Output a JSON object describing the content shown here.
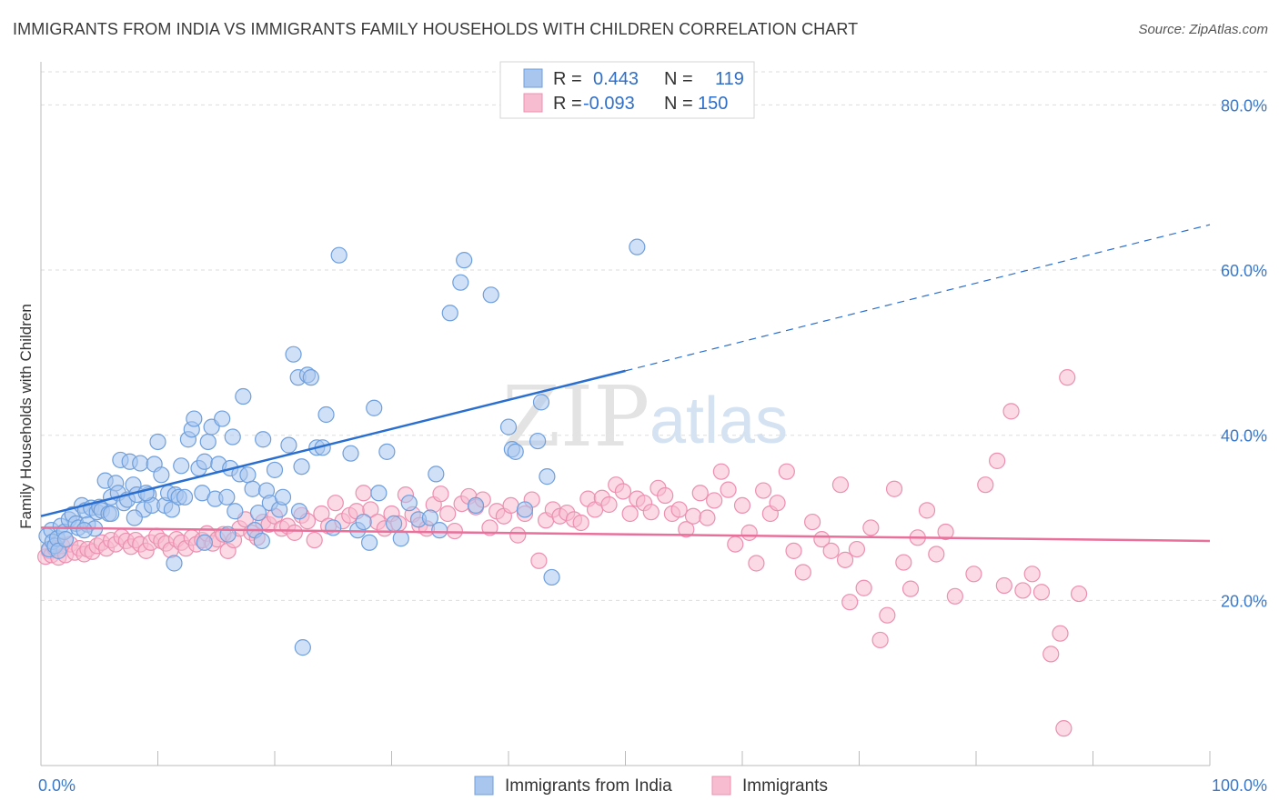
{
  "header": {
    "title": "IMMIGRANTS FROM INDIA VS IMMIGRANTS FAMILY HOUSEHOLDS WITH CHILDREN CORRELATION CHART",
    "source": "Source: ZipAtlas.com"
  },
  "watermark": {
    "zip": "ZIP",
    "atlas": "atlas"
  },
  "colors": {
    "blue_fill": "#a9c6ee",
    "blue_stroke": "#6f9fdc",
    "blue_line": "#2a6fd0",
    "pink_fill": "#f7bcd0",
    "pink_stroke": "#ec8fb0",
    "pink_line": "#e8709a",
    "tick_text": "#3a78c9",
    "grid": "#dddddd"
  },
  "legend": {
    "r_label": "R =",
    "n_label": "N =",
    "rows": [
      {
        "r": "0.443",
        "n": "119"
      },
      {
        "r": "-0.093",
        "n": "150"
      }
    ]
  },
  "chart_data": {
    "type": "scatter",
    "xlabel": "",
    "ylabel": "Family Households with Children",
    "xlim": [
      0,
      100
    ],
    "ylim": [
      0,
      85
    ],
    "x_tick_labels": [
      "0.0%",
      "100.0%"
    ],
    "y_ticks": [
      20,
      40,
      60,
      80
    ],
    "y_tick_labels": [
      "20.0%",
      "40.0%",
      "60.0%",
      "80.0%"
    ],
    "grid": "horizontal dashed",
    "legend_position": "top-center",
    "series": [
      {
        "name": "Immigrants from India",
        "color": "blue",
        "trend": {
          "x": [
            0,
            50
          ],
          "y": [
            30.2,
            47.8
          ],
          "dashed_extension_to": [
            100,
            65.5
          ]
        },
        "points": [
          [
            0.5,
            27.8
          ],
          [
            0.7,
            26.2
          ],
          [
            0.9,
            28.5
          ],
          [
            1.0,
            27.1
          ],
          [
            1.2,
            26.6
          ],
          [
            1.4,
            27.5
          ],
          [
            1.5,
            26.0
          ],
          [
            1.7,
            29.0
          ],
          [
            2.0,
            28.3
          ],
          [
            2.1,
            27.4
          ],
          [
            2.4,
            29.8
          ],
          [
            2.7,
            30.4
          ],
          [
            3.0,
            29.3
          ],
          [
            3.2,
            28.8
          ],
          [
            3.5,
            31.5
          ],
          [
            3.8,
            30.9
          ],
          [
            4.0,
            29.2
          ],
          [
            4.3,
            31.2
          ],
          [
            4.6,
            28.7
          ],
          [
            4.8,
            30.7
          ],
          [
            5.0,
            31.3
          ],
          [
            5.2,
            30.9
          ],
          [
            5.5,
            34.5
          ],
          [
            5.8,
            30.5
          ],
          [
            6.0,
            32.5
          ],
          [
            6.4,
            34.2
          ],
          [
            6.6,
            33.0
          ],
          [
            6.8,
            37.0
          ],
          [
            7.1,
            31.8
          ],
          [
            7.4,
            32.2
          ],
          [
            7.6,
            36.8
          ],
          [
            7.9,
            34.0
          ],
          [
            8.2,
            32.8
          ],
          [
            8.5,
            36.6
          ],
          [
            8.8,
            31.0
          ],
          [
            9.2,
            32.8
          ],
          [
            9.5,
            31.5
          ],
          [
            9.7,
            36.5
          ],
          [
            10.0,
            39.2
          ],
          [
            10.3,
            35.2
          ],
          [
            10.6,
            31.5
          ],
          [
            10.9,
            33.0
          ],
          [
            11.2,
            31.0
          ],
          [
            11.5,
            32.8
          ],
          [
            11.8,
            32.5
          ],
          [
            12.0,
            36.3
          ],
          [
            12.3,
            32.5
          ],
          [
            12.6,
            39.5
          ],
          [
            12.9,
            40.7
          ],
          [
            13.1,
            42.0
          ],
          [
            13.5,
            36.0
          ],
          [
            13.8,
            33.0
          ],
          [
            14.0,
            36.8
          ],
          [
            14.3,
            39.2
          ],
          [
            14.6,
            41.0
          ],
          [
            14.9,
            32.3
          ],
          [
            15.2,
            36.5
          ],
          [
            15.5,
            42.0
          ],
          [
            15.9,
            32.5
          ],
          [
            16.2,
            36.0
          ],
          [
            16.4,
            39.8
          ],
          [
            16.6,
            30.8
          ],
          [
            17.0,
            35.3
          ],
          [
            17.3,
            44.7
          ],
          [
            17.7,
            35.2
          ],
          [
            18.1,
            33.5
          ],
          [
            18.3,
            28.5
          ],
          [
            18.6,
            30.6
          ],
          [
            19.0,
            39.5
          ],
          [
            19.3,
            33.3
          ],
          [
            19.6,
            31.8
          ],
          [
            20.0,
            35.8
          ],
          [
            20.4,
            31.0
          ],
          [
            20.7,
            32.5
          ],
          [
            21.2,
            38.8
          ],
          [
            21.6,
            49.8
          ],
          [
            22.0,
            47.0
          ],
          [
            22.3,
            36.2
          ],
          [
            22.8,
            47.3
          ],
          [
            23.1,
            47.0
          ],
          [
            23.6,
            38.5
          ],
          [
            24.1,
            38.5
          ],
          [
            24.4,
            42.5
          ],
          [
            25.0,
            28.8
          ],
          [
            25.5,
            61.8
          ],
          [
            26.5,
            37.8
          ],
          [
            27.1,
            28.5
          ],
          [
            27.6,
            29.5
          ],
          [
            28.1,
            27.0
          ],
          [
            28.5,
            43.3
          ],
          [
            28.9,
            33.0
          ],
          [
            29.6,
            38.0
          ],
          [
            30.2,
            29.3
          ],
          [
            31.5,
            31.8
          ],
          [
            32.3,
            29.8
          ],
          [
            33.3,
            30.0
          ],
          [
            33.8,
            35.3
          ],
          [
            34.1,
            28.5
          ],
          [
            35.0,
            54.8
          ],
          [
            35.9,
            58.5
          ],
          [
            36.2,
            61.2
          ],
          [
            37.2,
            31.5
          ],
          [
            38.5,
            57.0
          ],
          [
            40.0,
            41.0
          ],
          [
            40.3,
            38.3
          ],
          [
            40.6,
            38.0
          ],
          [
            41.4,
            31.0
          ],
          [
            42.5,
            39.3
          ],
          [
            42.8,
            44.0
          ],
          [
            43.3,
            35.0
          ],
          [
            43.7,
            22.8
          ],
          [
            51.0,
            62.8
          ],
          [
            18.9,
            27.2
          ],
          [
            14.0,
            27.0
          ],
          [
            6.0,
            30.5
          ],
          [
            9.0,
            33.0
          ],
          [
            22.1,
            30.8
          ],
          [
            11.4,
            24.5
          ],
          [
            22.4,
            14.3
          ],
          [
            30.8,
            27.5
          ],
          [
            3.7,
            28.5
          ],
          [
            8.0,
            30.0
          ],
          [
            16.0,
            28.0
          ]
        ]
      },
      {
        "name": "Immigrants",
        "color": "pink",
        "trend": {
          "x": [
            0,
            100
          ],
          "y": [
            28.8,
            27.2
          ]
        },
        "points": [
          [
            0.4,
            25.3
          ],
          [
            0.7,
            26.0
          ],
          [
            0.9,
            25.5
          ],
          [
            1.2,
            26.3
          ],
          [
            1.5,
            25.2
          ],
          [
            1.8,
            26.6
          ],
          [
            2.1,
            25.5
          ],
          [
            2.5,
            26.8
          ],
          [
            2.9,
            25.8
          ],
          [
            3.3,
            26.3
          ],
          [
            3.7,
            25.6
          ],
          [
            4.0,
            26.2
          ],
          [
            4.4,
            25.9
          ],
          [
            4.8,
            26.6
          ],
          [
            5.2,
            27.0
          ],
          [
            5.6,
            26.3
          ],
          [
            6.0,
            27.3
          ],
          [
            6.4,
            26.8
          ],
          [
            6.9,
            27.7
          ],
          [
            7.3,
            27.2
          ],
          [
            7.7,
            26.5
          ],
          [
            8.1,
            27.3
          ],
          [
            8.5,
            26.8
          ],
          [
            9.0,
            26.0
          ],
          [
            9.4,
            27.0
          ],
          [
            9.9,
            27.8
          ],
          [
            10.3,
            27.2
          ],
          [
            10.7,
            26.9
          ],
          [
            11.1,
            26.1
          ],
          [
            11.6,
            27.4
          ],
          [
            12.0,
            27.0
          ],
          [
            12.4,
            26.3
          ],
          [
            12.9,
            27.6
          ],
          [
            13.3,
            26.8
          ],
          [
            13.8,
            27.3
          ],
          [
            14.2,
            28.1
          ],
          [
            14.7,
            26.9
          ],
          [
            15.1,
            27.4
          ],
          [
            15.6,
            28.0
          ],
          [
            16.0,
            26.0
          ],
          [
            16.5,
            27.3
          ],
          [
            17.0,
            28.7
          ],
          [
            17.5,
            29.8
          ],
          [
            18.0,
            28.2
          ],
          [
            18.5,
            27.6
          ],
          [
            19.0,
            29.5
          ],
          [
            19.5,
            29.2
          ],
          [
            20.0,
            30.2
          ],
          [
            20.6,
            28.7
          ],
          [
            21.1,
            29.0
          ],
          [
            21.7,
            28.2
          ],
          [
            22.3,
            30.3
          ],
          [
            22.8,
            29.6
          ],
          [
            23.4,
            27.3
          ],
          [
            24.0,
            30.5
          ],
          [
            24.6,
            29.0
          ],
          [
            25.2,
            31.8
          ],
          [
            25.8,
            29.6
          ],
          [
            26.4,
            30.3
          ],
          [
            27.0,
            30.8
          ],
          [
            27.6,
            33.0
          ],
          [
            28.2,
            31.0
          ],
          [
            28.8,
            29.5
          ],
          [
            29.4,
            28.7
          ],
          [
            30.0,
            30.5
          ],
          [
            30.6,
            29.3
          ],
          [
            31.2,
            32.8
          ],
          [
            31.8,
            30.4
          ],
          [
            32.4,
            29.1
          ],
          [
            33.0,
            28.7
          ],
          [
            33.6,
            31.6
          ],
          [
            34.2,
            32.9
          ],
          [
            34.8,
            30.5
          ],
          [
            35.4,
            28.4
          ],
          [
            36.0,
            31.7
          ],
          [
            36.6,
            32.6
          ],
          [
            37.2,
            31.3
          ],
          [
            37.8,
            32.2
          ],
          [
            38.4,
            28.8
          ],
          [
            39.0,
            30.8
          ],
          [
            39.6,
            30.2
          ],
          [
            40.2,
            31.5
          ],
          [
            40.8,
            27.9
          ],
          [
            41.4,
            30.5
          ],
          [
            42.0,
            32.2
          ],
          [
            42.6,
            24.8
          ],
          [
            43.2,
            29.7
          ],
          [
            43.8,
            31.0
          ],
          [
            44.4,
            30.2
          ],
          [
            45.0,
            30.6
          ],
          [
            45.6,
            29.8
          ],
          [
            46.2,
            29.4
          ],
          [
            46.8,
            32.3
          ],
          [
            47.4,
            31.0
          ],
          [
            48.0,
            32.4
          ],
          [
            48.6,
            31.6
          ],
          [
            49.2,
            34.0
          ],
          [
            49.8,
            33.2
          ],
          [
            50.4,
            30.5
          ],
          [
            51.0,
            32.3
          ],
          [
            51.6,
            31.8
          ],
          [
            52.2,
            30.7
          ],
          [
            52.8,
            33.6
          ],
          [
            53.4,
            32.7
          ],
          [
            54.0,
            30.5
          ],
          [
            54.6,
            31.0
          ],
          [
            55.2,
            28.6
          ],
          [
            55.8,
            30.2
          ],
          [
            56.4,
            33.0
          ],
          [
            57.0,
            30.0
          ],
          [
            57.6,
            32.1
          ],
          [
            58.2,
            35.6
          ],
          [
            58.8,
            33.4
          ],
          [
            59.4,
            26.8
          ],
          [
            60.0,
            31.5
          ],
          [
            60.6,
            28.2
          ],
          [
            61.2,
            24.5
          ],
          [
            61.8,
            33.3
          ],
          [
            62.4,
            30.5
          ],
          [
            63.0,
            31.8
          ],
          [
            63.8,
            35.6
          ],
          [
            64.4,
            26.0
          ],
          [
            65.2,
            23.4
          ],
          [
            66.0,
            29.5
          ],
          [
            66.8,
            27.4
          ],
          [
            67.6,
            26.0
          ],
          [
            68.4,
            34.0
          ],
          [
            69.2,
            19.8
          ],
          [
            69.8,
            26.2
          ],
          [
            70.4,
            21.5
          ],
          [
            71.0,
            28.8
          ],
          [
            71.8,
            15.2
          ],
          [
            72.4,
            18.2
          ],
          [
            73.0,
            33.5
          ],
          [
            73.8,
            24.6
          ],
          [
            74.4,
            21.4
          ],
          [
            75.0,
            27.6
          ],
          [
            75.8,
            30.9
          ],
          [
            76.6,
            25.6
          ],
          [
            77.4,
            28.3
          ],
          [
            78.2,
            20.5
          ],
          [
            79.8,
            23.2
          ],
          [
            80.8,
            34.0
          ],
          [
            81.8,
            36.9
          ],
          [
            82.4,
            21.8
          ],
          [
            83.0,
            42.9
          ],
          [
            84.0,
            21.2
          ],
          [
            84.8,
            23.2
          ],
          [
            85.6,
            21.0
          ],
          [
            86.4,
            13.5
          ],
          [
            87.2,
            16.0
          ],
          [
            87.8,
            47.0
          ],
          [
            88.8,
            20.8
          ],
          [
            87.5,
            4.5
          ],
          [
            68.8,
            24.9
          ]
        ]
      }
    ]
  },
  "bottom_legend": {
    "items": [
      "Immigrants from India",
      "Immigrants"
    ]
  }
}
